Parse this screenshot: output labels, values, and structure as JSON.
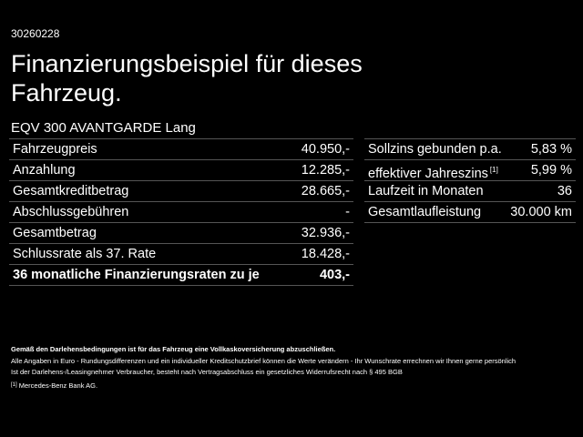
{
  "code": "30260228",
  "title": "Finanzierungsbeispiel für dieses Fahrzeug.",
  "model": "EQV 300 AVANTGARDE Lang",
  "left_table": {
    "rows": [
      [
        "Fahrzeugpreis",
        "40.950,-"
      ],
      [
        "Anzahlung",
        "12.285,-"
      ],
      [
        "Gesamtkreditbetrag",
        "28.665,-"
      ],
      [
        "Abschlussgebühren",
        "-"
      ],
      [
        "Gesamtbetrag",
        "32.936,-"
      ],
      [
        "Schlussrate als 37. Rate",
        "18.428,-"
      ],
      [
        "36 monatliche Finanzierungsraten zu je",
        "403,-"
      ]
    ]
  },
  "right_table": {
    "rows": [
      [
        "Sollzins gebunden p.a.",
        "5,83 %"
      ],
      [
        "effektiver Jahreszins",
        "5,99 %"
      ],
      [
        "Laufzeit in Monaten",
        "36"
      ],
      [
        "Gesamtlaufleistung",
        "30.000 km"
      ]
    ],
    "footnote_ref": "[1]"
  },
  "notes": {
    "insurance": "Gemäß den Darlehensbedingungen ist für das Fahrzeug eine Vollkaskoversicherung abzuschließen.",
    "disclaimer": "Alle Angaben in Euro - Rundungsdifferenzen und ein individueller Kreditschutzbrief können die Werte verändern - Ihr Wunschrate errechnen wir Ihnen gerne persönlich",
    "consumer": "Ist der Darlehens-/Leasingnehmer Verbraucher, besteht nach Vertragsabschluss ein gesetzliches Widerrufsrecht nach § 495 BGB",
    "footnote": {
      "marker": "[1]",
      "text": "Mercedes-Benz Bank AG."
    }
  }
}
